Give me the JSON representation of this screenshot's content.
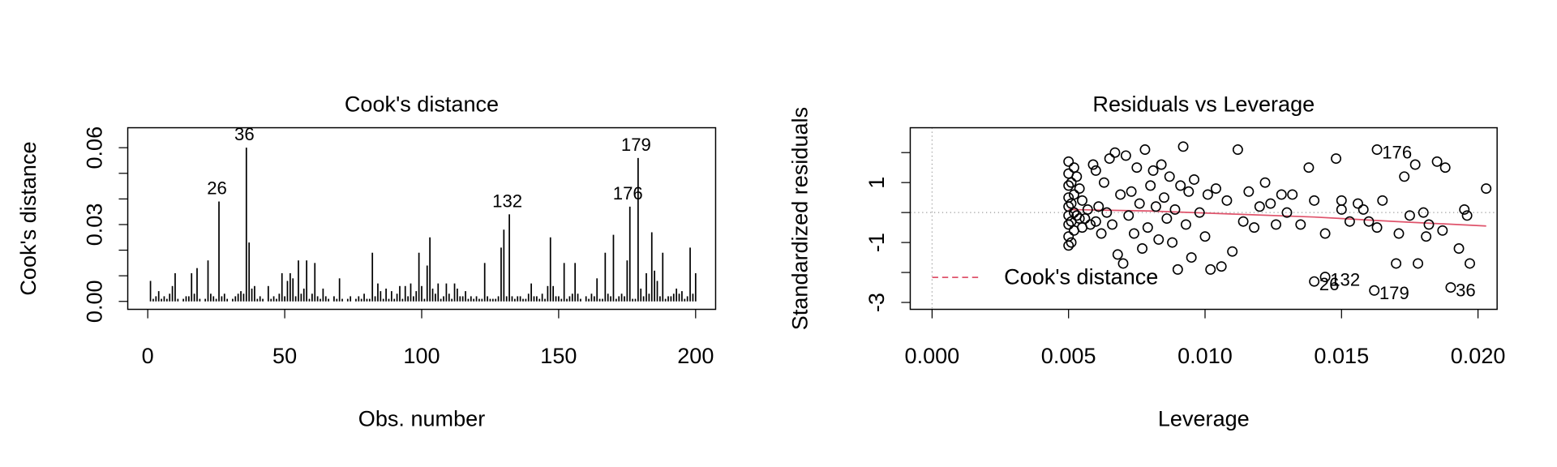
{
  "chart_data": [
    {
      "type": "needle",
      "title": "Cook's distance",
      "xlabel": "Obs. number",
      "ylabel": "Cook's distance",
      "color": "#000000",
      "x": [
        1,
        2,
        3,
        4,
        5,
        6,
        7,
        8,
        9,
        10,
        11,
        12,
        13,
        14,
        15,
        16,
        17,
        18,
        19,
        20,
        21,
        22,
        23,
        24,
        25,
        26,
        27,
        28,
        29,
        30,
        31,
        32,
        33,
        34,
        35,
        36,
        37,
        38,
        39,
        40,
        41,
        42,
        43,
        44,
        45,
        46,
        47,
        48,
        49,
        50,
        51,
        52,
        53,
        54,
        55,
        56,
        57,
        58,
        59,
        60,
        61,
        62,
        63,
        64,
        65,
        66,
        67,
        68,
        69,
        70,
        71,
        72,
        73,
        74,
        75,
        76,
        77,
        78,
        79,
        80,
        81,
        82,
        83,
        84,
        85,
        86,
        87,
        88,
        89,
        90,
        91,
        92,
        93,
        94,
        95,
        96,
        97,
        98,
        99,
        100,
        101,
        102,
        103,
        104,
        105,
        106,
        107,
        108,
        109,
        110,
        111,
        112,
        113,
        114,
        115,
        116,
        117,
        118,
        119,
        120,
        121,
        122,
        123,
        124,
        125,
        126,
        127,
        128,
        129,
        130,
        131,
        132,
        133,
        134,
        135,
        136,
        137,
        138,
        139,
        140,
        141,
        142,
        143,
        144,
        145,
        146,
        147,
        148,
        149,
        150,
        151,
        152,
        153,
        154,
        155,
        156,
        157,
        158,
        159,
        160,
        161,
        162,
        163,
        164,
        165,
        166,
        167,
        168,
        169,
        170,
        171,
        172,
        173,
        174,
        175,
        176,
        177,
        178,
        179,
        180,
        181,
        182,
        183,
        184,
        185,
        186,
        187,
        188,
        189,
        190,
        191,
        192,
        193,
        194,
        195,
        196,
        197,
        198,
        199,
        200
      ],
      "values": [
        0.008,
        0.001,
        0.002,
        0.004,
        0.001,
        0.002,
        0.001,
        0.003,
        0.006,
        0.011,
        0.001,
        0.0,
        0.001,
        0.002,
        0.002,
        0.011,
        0.003,
        0.013,
        0.001,
        0.0,
        0.001,
        0.016,
        0.003,
        0.002,
        0.001,
        0.039,
        0.002,
        0.003,
        0.001,
        0.0,
        0.001,
        0.002,
        0.003,
        0.004,
        0.003,
        0.06,
        0.023,
        0.005,
        0.006,
        0.001,
        0.002,
        0.001,
        0.0,
        0.006,
        0.001,
        0.002,
        0.001,
        0.003,
        0.011,
        0.002,
        0.008,
        0.011,
        0.009,
        0.002,
        0.016,
        0.003,
        0.005,
        0.016,
        0.001,
        0.003,
        0.015,
        0.002,
        0.001,
        0.005,
        0.002,
        0.001,
        0.0,
        0.002,
        0.001,
        0.009,
        0.001,
        0.0,
        0.001,
        0.002,
        0.0,
        0.001,
        0.002,
        0.001,
        0.003,
        0.001,
        0.001,
        0.019,
        0.002,
        0.007,
        0.004,
        0.001,
        0.005,
        0.001,
        0.004,
        0.001,
        0.003,
        0.006,
        0.001,
        0.006,
        0.002,
        0.007,
        0.002,
        0.004,
        0.019,
        0.006,
        0.001,
        0.014,
        0.025,
        0.005,
        0.003,
        0.007,
        0.001,
        0.002,
        0.007,
        0.003,
        0.001,
        0.007,
        0.005,
        0.002,
        0.002,
        0.004,
        0.001,
        0.002,
        0.001,
        0.002,
        0.001,
        0.001,
        0.015,
        0.002,
        0.001,
        0.001,
        0.001,
        0.002,
        0.021,
        0.028,
        0.002,
        0.034,
        0.002,
        0.001,
        0.002,
        0.002,
        0.001,
        0.001,
        0.003,
        0.007,
        0.002,
        0.002,
        0.001,
        0.003,
        0.001,
        0.006,
        0.025,
        0.006,
        0.002,
        0.002,
        0.001,
        0.015,
        0.001,
        0.002,
        0.003,
        0.015,
        0.003,
        0.001,
        0.0,
        0.002,
        0.001,
        0.003,
        0.002,
        0.009,
        0.001,
        0.001,
        0.019,
        0.003,
        0.002,
        0.026,
        0.001,
        0.002,
        0.003,
        0.002,
        0.016,
        0.037,
        0.001,
        0.001,
        0.056,
        0.005,
        0.002,
        0.011,
        0.003,
        0.027,
        0.012,
        0.008,
        0.002,
        0.019,
        0.001,
        0.002,
        0.002,
        0.003,
        0.005,
        0.003,
        0.004,
        0.001,
        0.002,
        0.021,
        0.003,
        0.011
      ],
      "labeled_obs": [
        26,
        36,
        132,
        176,
        179
      ],
      "xlim": [
        -7.3,
        207.3
      ],
      "xticks": [
        0,
        50,
        100,
        150,
        200
      ],
      "ylim": [
        -0.0031,
        0.0678
      ],
      "yticks": [
        {
          "value": 0,
          "label": "0.00"
        },
        {
          "value": 0.01,
          "label": null
        },
        {
          "value": 0.02,
          "label": null
        },
        {
          "value": 0.03,
          "label": "0.03"
        },
        {
          "value": 0.04,
          "label": null
        },
        {
          "value": 0.05,
          "label": null
        },
        {
          "value": 0.06,
          "label": "0.06"
        }
      ]
    },
    {
      "type": "scatter",
      "title": "Residuals vs Leverage",
      "xlabel": "Leverage",
      "ylabel": "Standardized residuals",
      "color": "#000000",
      "x": [
        0.005,
        0.005,
        0.005,
        0.005,
        0.005,
        0.005,
        0.005,
        0.005,
        0.005,
        0.0051,
        0.0051,
        0.0051,
        0.0051,
        0.0052,
        0.0052,
        0.0052,
        0.0052,
        0.0053,
        0.0053,
        0.0054,
        0.0054,
        0.0055,
        0.0055,
        0.0056,
        0.0057,
        0.0058,
        0.0059,
        0.006,
        0.006,
        0.0061,
        0.0062,
        0.0063,
        0.0064,
        0.0065,
        0.0066,
        0.0067,
        0.0068,
        0.0069,
        0.007,
        0.0071,
        0.0072,
        0.0073,
        0.0074,
        0.0075,
        0.0076,
        0.0077,
        0.0078,
        0.0079,
        0.008,
        0.0081,
        0.0082,
        0.0083,
        0.0084,
        0.0085,
        0.0086,
        0.0087,
        0.0088,
        0.0089,
        0.009,
        0.0091,
        0.0092,
        0.0093,
        0.0094,
        0.0095,
        0.0096,
        0.0098,
        0.01,
        0.0101,
        0.0102,
        0.0104,
        0.0106,
        0.0108,
        0.011,
        0.0112,
        0.0114,
        0.0116,
        0.0118,
        0.012,
        0.0122,
        0.0124,
        0.0126,
        0.0128,
        0.013,
        0.0132,
        0.0135,
        0.0138,
        0.014,
        0.0144,
        0.0148,
        0.015,
        0.015,
        0.0153,
        0.0156,
        0.0158,
        0.016,
        0.0163,
        0.0165,
        0.017,
        0.0171,
        0.0173,
        0.0175,
        0.0177,
        0.0178,
        0.018,
        0.0181,
        0.0182,
        0.0185,
        0.0187,
        0.0188,
        0.0193,
        0.0195,
        0.0197,
        0.0196,
        0.0203,
        0.0163,
        0.014,
        0.0144,
        0.0162,
        0.019
      ],
      "values": [
        1.7,
        1.3,
        0.9,
        0.5,
        0.2,
        -0.1,
        -0.4,
        -0.8,
        -1.1,
        1.0,
        0.3,
        -0.3,
        -1.0,
        1.5,
        0.6,
        0.0,
        -0.6,
        1.2,
        -0.1,
        0.8,
        -0.2,
        0.4,
        -0.5,
        -0.2,
        0.1,
        -0.4,
        1.6,
        1.4,
        -0.3,
        0.2,
        -0.7,
        1.0,
        0.0,
        1.8,
        -0.4,
        2.0,
        -1.4,
        0.6,
        -1.7,
        1.9,
        -0.1,
        0.7,
        -0.7,
        1.5,
        0.3,
        -1.2,
        2.1,
        -0.5,
        0.9,
        1.4,
        0.2,
        -0.9,
        1.6,
        0.5,
        -0.2,
        1.2,
        -1.0,
        0.1,
        -1.9,
        0.9,
        2.2,
        -0.4,
        0.7,
        -1.5,
        1.1,
        0.0,
        -0.8,
        0.6,
        -1.9,
        0.8,
        -1.8,
        0.4,
        -1.3,
        2.1,
        -0.3,
        0.7,
        -0.5,
        0.2,
        1.0,
        0.3,
        -0.4,
        0.6,
        0.0,
        0.6,
        -0.4,
        1.5,
        0.4,
        -0.7,
        1.8,
        0.1,
        0.4,
        -0.3,
        0.3,
        0.1,
        -0.3,
        -0.5,
        0.4,
        -1.7,
        -0.7,
        1.2,
        -0.1,
        1.6,
        -1.7,
        0.0,
        -0.8,
        -0.4,
        1.7,
        -0.6,
        1.5,
        -1.2,
        0.1,
        -1.7,
        -0.1,
        0.8,
        2.1,
        -2.3,
        -2.15,
        -2.6,
        -2.5
      ],
      "point_labels": [
        null,
        null,
        null,
        null,
        null,
        null,
        null,
        null,
        null,
        null,
        null,
        null,
        null,
        null,
        null,
        null,
        null,
        null,
        null,
        null,
        null,
        null,
        null,
        null,
        null,
        null,
        null,
        null,
        null,
        null,
        null,
        null,
        null,
        null,
        null,
        null,
        null,
        null,
        null,
        null,
        null,
        null,
        null,
        null,
        null,
        null,
        null,
        null,
        null,
        null,
        null,
        null,
        null,
        null,
        null,
        null,
        null,
        null,
        null,
        null,
        null,
        null,
        null,
        null,
        null,
        null,
        null,
        null,
        null,
        null,
        null,
        null,
        null,
        null,
        null,
        null,
        null,
        null,
        null,
        null,
        null,
        null,
        null,
        null,
        null,
        null,
        null,
        null,
        null,
        null,
        null,
        null,
        null,
        null,
        null,
        null,
        null,
        null,
        null,
        null,
        null,
        null,
        null,
        null,
        null,
        null,
        null,
        null,
        null,
        null,
        null,
        null,
        null,
        null,
        "176",
        "26",
        "132",
        "179",
        "36"
      ],
      "smooth": {
        "color": "#DF536B",
        "x": [
          0.005,
          0.008,
          0.011,
          0.014,
          0.017,
          0.0203
        ],
        "y": [
          0.1,
          0.05,
          -0.05,
          -0.15,
          -0.3,
          -0.45
        ]
      },
      "legend": {
        "label": "Cook's distance",
        "color": "#DF536B",
        "position": "bottomleft"
      },
      "xlim": [
        -0.0008,
        0.0207
      ],
      "xticks": [
        {
          "value": 0,
          "label": "0.000"
        },
        {
          "value": 0.005,
          "label": "0.005"
        },
        {
          "value": 0.01,
          "label": "0.010"
        },
        {
          "value": 0.015,
          "label": "0.015"
        },
        {
          "value": 0.02,
          "label": "0.020"
        }
      ],
      "ylim": [
        -3.23,
        2.83
      ],
      "yticks": [
        -3,
        {
          "value": -2,
          "label": null
        },
        -1,
        {
          "value": 0,
          "label": null
        },
        1,
        {
          "value": 2,
          "label": null
        }
      ]
    }
  ]
}
